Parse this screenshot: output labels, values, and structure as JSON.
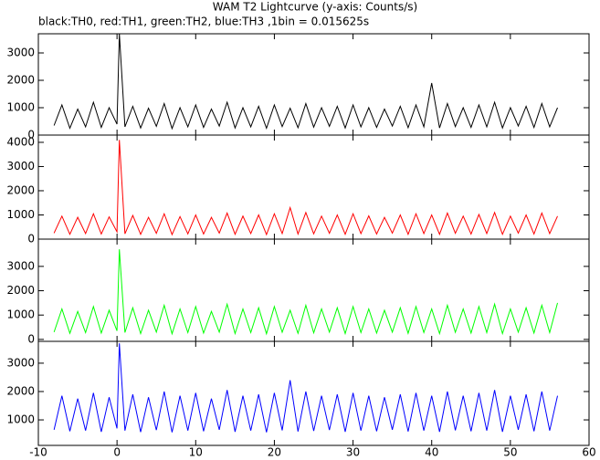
{
  "chart_data": {
    "type": "line",
    "title": "WAM T2 Lightcurve (y-axis: Counts/s)",
    "subtitle": "black:TH0, red:TH1, green:TH2, blue:TH3 ,1bin = 0.015625s",
    "xlim": [
      -10,
      60
    ],
    "xticks": [
      -10,
      0,
      10,
      20,
      30,
      40,
      50,
      60
    ],
    "x": [
      -8,
      -7,
      -6,
      -5,
      -4,
      -3,
      -2,
      -1,
      0,
      0.3,
      1,
      2,
      3,
      4,
      5,
      6,
      7,
      8,
      9,
      10,
      11,
      12,
      13,
      14,
      15,
      16,
      17,
      18,
      19,
      20,
      21,
      22,
      23,
      24,
      25,
      26,
      27,
      28,
      29,
      30,
      31,
      32,
      33,
      34,
      35,
      36,
      37,
      38,
      39,
      40,
      41,
      42,
      43,
      44,
      45,
      46,
      47,
      48,
      49,
      50,
      51,
      52,
      53,
      54,
      55,
      56
    ],
    "panels": [
      {
        "ylim": [
          0,
          3700
        ],
        "yticks": [
          0,
          1000,
          2000,
          3000
        ],
        "series": [
          {
            "color": "#000000",
            "values": [
              350,
              1100,
              250,
              950,
              300,
              1200,
              280,
              1000,
              400,
              3700,
              300,
              1050,
              260,
              980,
              320,
              1150,
              240,
              1000,
              300,
              1100,
              280,
              950,
              330,
              1200,
              260,
              1000,
              300,
              1050,
              250,
              1100,
              310,
              980,
              270,
              1150,
              290,
              1000,
              320,
              1050,
              260,
              1100,
              300,
              1000,
              280,
              950,
              330,
              1050,
              270,
              1100,
              300,
              1900,
              260,
              1150,
              310,
              1000,
              280,
              1100,
              300,
              1200,
              260,
              1000,
              330,
              1050,
              280,
              1150,
              300,
              1000
            ]
          }
        ]
      },
      {
        "ylim": [
          0,
          4300
        ],
        "yticks": [
          0,
          1000,
          2000,
          3000,
          4000
        ],
        "series": [
          {
            "color": "#ff0000",
            "values": [
              250,
              950,
              200,
              900,
              230,
              1050,
              210,
              920,
              300,
              4100,
              220,
              980,
              200,
              900,
              240,
              1050,
              190,
              930,
              220,
              1000,
              210,
              900,
              250,
              1080,
              200,
              950,
              230,
              1000,
              190,
              1050,
              230,
              1300,
              210,
              1100,
              220,
              950,
              240,
              1000,
              200,
              1050,
              230,
              960,
              210,
              900,
              250,
              1000,
              200,
              1050,
              230,
              1000,
              200,
              1080,
              240,
              950,
              210,
              1020,
              230,
              1100,
              200,
              950,
              250,
              1000,
              210,
              1080,
              230,
              950
            ]
          }
        ]
      },
      {
        "ylim": [
          -80,
          4120
        ],
        "yticks": [
          0,
          1000,
          2000,
          3000
        ],
        "series": [
          {
            "color": "#00ff00",
            "values": [
              300,
              1250,
              250,
              1150,
              280,
              1350,
              260,
              1200,
              350,
              3700,
              280,
              1300,
              240,
              1200,
              300,
              1400,
              230,
              1250,
              280,
              1350,
              260,
              1150,
              300,
              1450,
              240,
              1250,
              280,
              1300,
              230,
              1350,
              290,
              1200,
              250,
              1400,
              270,
              1250,
              300,
              1300,
              240,
              1350,
              280,
              1250,
              260,
              1200,
              300,
              1300,
              250,
              1350,
              280,
              1250,
              240,
              1400,
              290,
              1250,
              260,
              1350,
              280,
              1450,
              240,
              1250,
              300,
              1300,
              260,
              1400,
              280,
              1500
            ]
          }
        ]
      },
      {
        "ylim": [
          100,
          3770
        ],
        "yticks": [
          1000,
          2000,
          3000
        ],
        "series": [
          {
            "color": "#0000ff",
            "values": [
              650,
              1850,
              600,
              1750,
              620,
              1950,
              580,
              1800,
              700,
              3700,
              620,
              1900,
              570,
              1800,
              640,
              2000,
              560,
              1850,
              620,
              1950,
              600,
              1750,
              650,
              2050,
              580,
              1850,
              620,
              1900,
              560,
              1950,
              630,
              2400,
              590,
              2000,
              610,
              1850,
              640,
              1900,
              580,
              1950,
              620,
              1850,
              600,
              1800,
              650,
              1900,
              590,
              1950,
              620,
              1850,
              580,
              2000,
              630,
              1850,
              600,
              1950,
              620,
              2050,
              580,
              1850,
              650,
              1900,
              600,
              2000,
              620,
              1850
            ]
          }
        ]
      }
    ]
  }
}
